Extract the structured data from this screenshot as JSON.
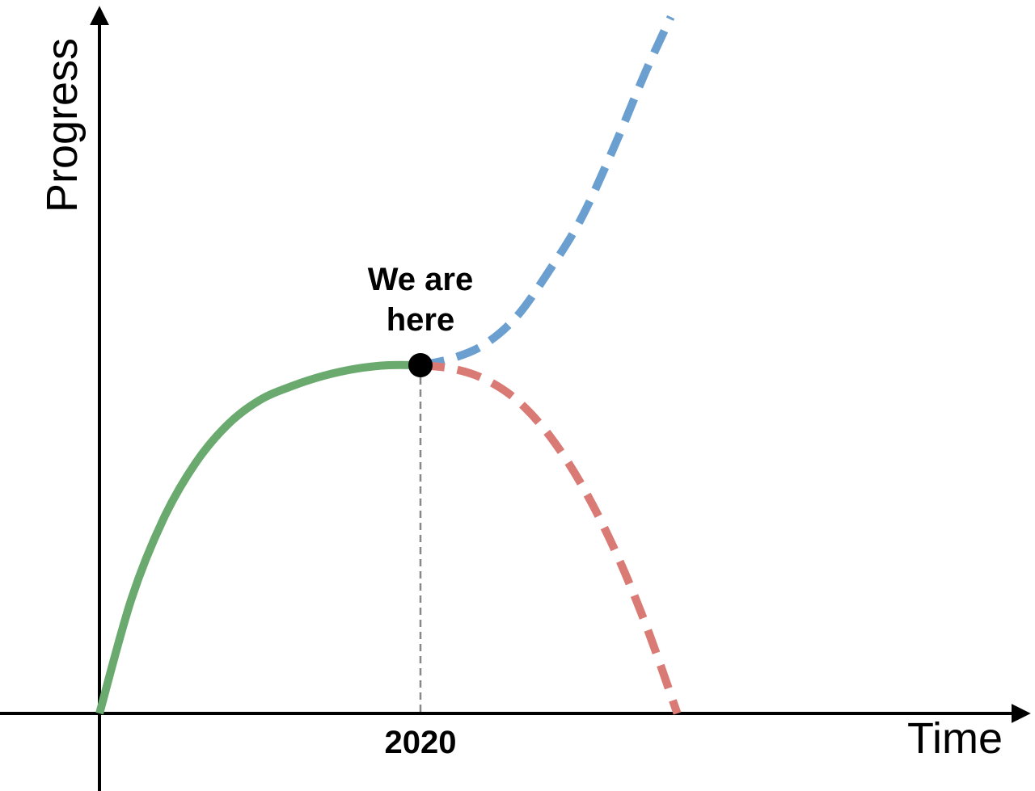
{
  "chart_data": {
    "type": "line",
    "xlabel": "Time",
    "ylabel": "Progress",
    "xlim": [
      0,
      2
    ],
    "ylim": [
      0,
      2
    ],
    "x_ticks": [
      {
        "value": 1,
        "label": "2020"
      }
    ],
    "annotation": {
      "text_lines": [
        "We are",
        "here"
      ],
      "x": 1,
      "y": 1
    },
    "grid": false,
    "series": [
      {
        "style": "solid",
        "color": "#6aaa6e",
        "points": [
          [
            0,
            0
          ],
          [
            0.1,
            0.33
          ],
          [
            0.2,
            0.56
          ],
          [
            0.3,
            0.72
          ],
          [
            0.4,
            0.83
          ],
          [
            0.5,
            0.9
          ],
          [
            0.6,
            0.94
          ],
          [
            0.7,
            0.97
          ],
          [
            0.8,
            0.99
          ],
          [
            0.9,
            1.0
          ],
          [
            1.0,
            1.0
          ]
        ]
      },
      {
        "style": "dashed",
        "color": "#6b9fd0",
        "points": [
          [
            1.0,
            1.0
          ],
          [
            1.1,
            1.02
          ],
          [
            1.2,
            1.06
          ],
          [
            1.3,
            1.14
          ],
          [
            1.4,
            1.27
          ],
          [
            1.5,
            1.42
          ],
          [
            1.6,
            1.62
          ],
          [
            1.7,
            1.84
          ],
          [
            1.78,
            2.0
          ]
        ]
      },
      {
        "style": "dashed",
        "color": "#d97a75",
        "points": [
          [
            1.0,
            1.0
          ],
          [
            1.1,
            0.99
          ],
          [
            1.2,
            0.96
          ],
          [
            1.3,
            0.9
          ],
          [
            1.4,
            0.8
          ],
          [
            1.5,
            0.66
          ],
          [
            1.6,
            0.48
          ],
          [
            1.7,
            0.26
          ],
          [
            1.8,
            0.0
          ]
        ]
      }
    ]
  }
}
